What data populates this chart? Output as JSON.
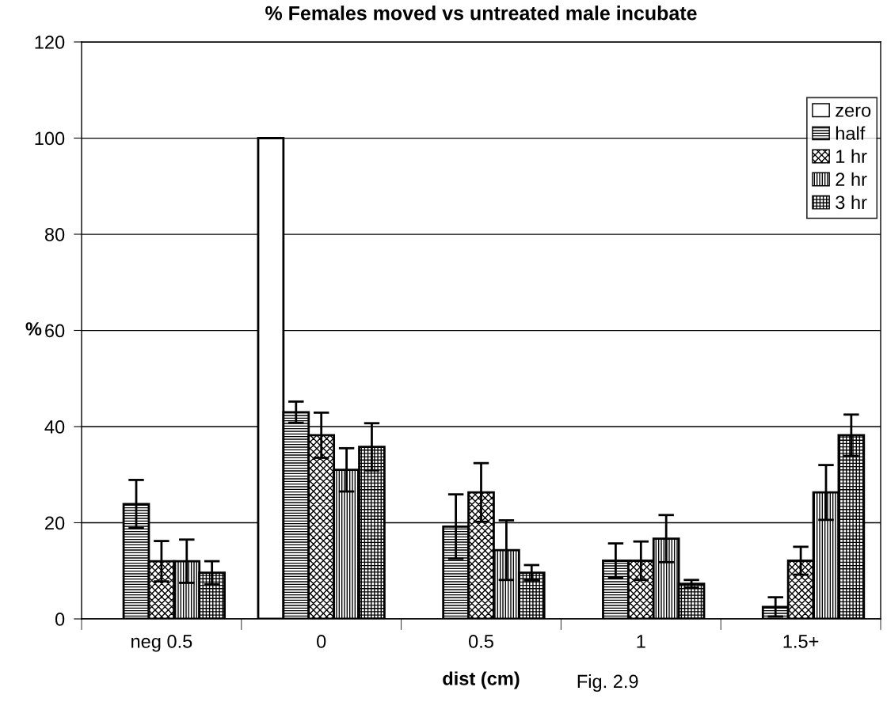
{
  "chart_data": {
    "type": "bar",
    "title": "% Females moved vs untreated male incubate",
    "xlabel": "dist (cm)",
    "ylabel": "%",
    "categories": [
      "neg 0.5",
      "0",
      "0.5",
      "1",
      "1.5+"
    ],
    "series": [
      {
        "name": "zero",
        "color": "#ffffff",
        "values": [
          null,
          100,
          null,
          null,
          null
        ]
      },
      {
        "name": "half",
        "color": "#000000",
        "values": [
          23.9,
          43.0,
          19.2,
          12.1,
          2.5
        ],
        "errors": [
          5.0,
          2.2,
          6.7,
          3.6,
          2.0
        ]
      },
      {
        "name": "1 hr",
        "color": "#000000",
        "values": [
          12.0,
          38.2,
          26.3,
          12.1,
          12.1
        ],
        "errors": [
          4.2,
          4.7,
          6.1,
          4.0,
          2.9
        ]
      },
      {
        "name": "2 hr",
        "color": "#000000",
        "values": [
          12.0,
          31.0,
          14.3,
          16.7,
          26.3
        ],
        "errors": [
          4.5,
          4.5,
          6.2,
          4.9,
          5.7
        ]
      },
      {
        "name": "3 hr",
        "color": "#000000",
        "values": [
          9.6,
          35.8,
          9.6,
          7.3,
          38.2
        ],
        "errors": [
          2.4,
          4.9,
          1.6,
          0.8,
          4.3
        ]
      }
    ],
    "ylim": [
      0,
      120
    ],
    "yticks": [
      0,
      20,
      40,
      60,
      80,
      100,
      120
    ],
    "grid": "y",
    "legend": "top right",
    "annotations": [
      "Fig. 2.9"
    ]
  }
}
